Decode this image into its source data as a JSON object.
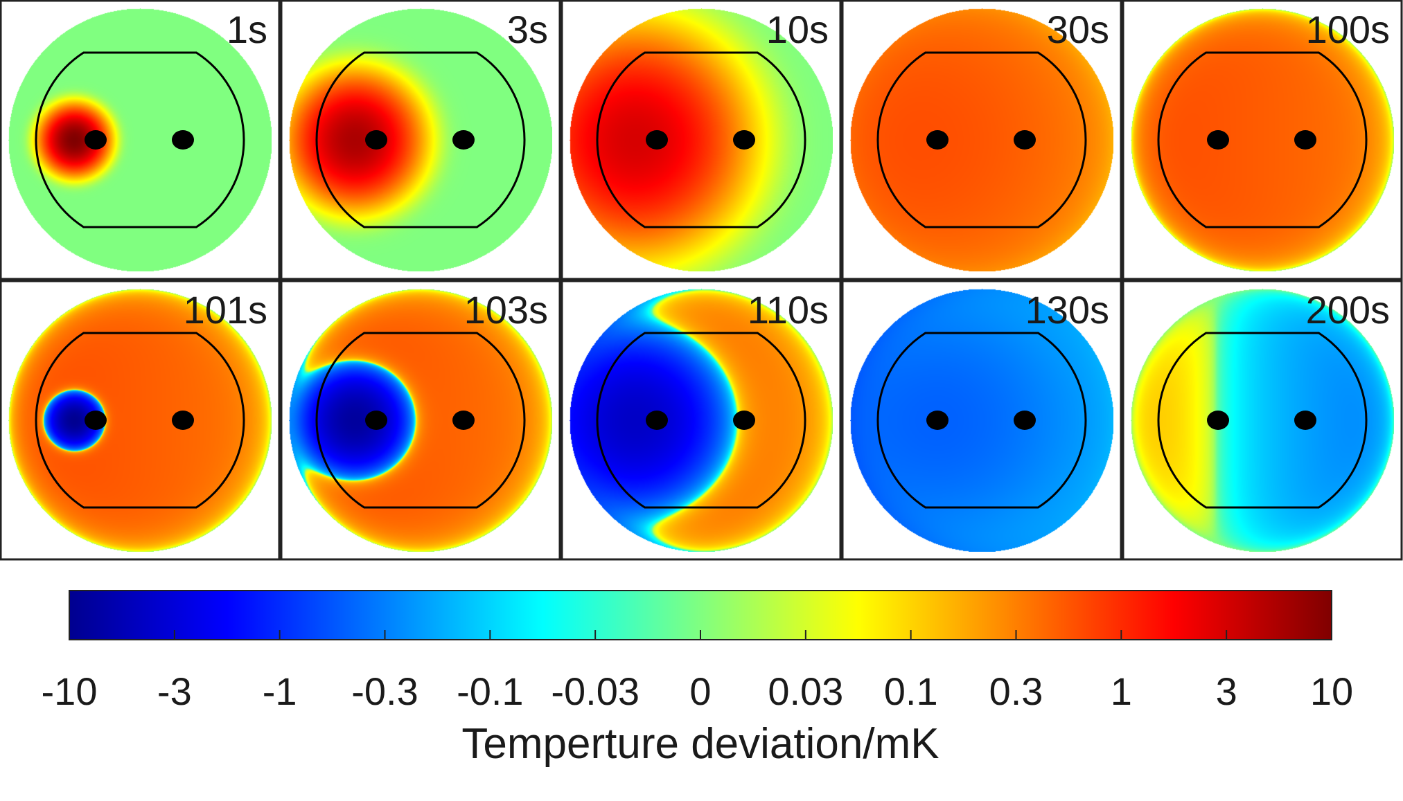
{
  "chart_data": {
    "type": "heatmap",
    "panels": [
      {
        "label": "1s",
        "hot": {
          "amp": 10,
          "sigma": 0.09
        },
        "cold": null,
        "background": 0,
        "gradient": 0
      },
      {
        "label": "3s",
        "hot": {
          "amp": 5,
          "sigma": 0.18
        },
        "cold": null,
        "background": 0,
        "gradient": 0
      },
      {
        "label": "10s",
        "hot": {
          "amp": 2.5,
          "sigma": 0.32
        },
        "cold": null,
        "background": 0,
        "gradient": 0
      },
      {
        "label": "30s",
        "hot": {
          "amp": 0.3,
          "sigma": 0.9
        },
        "cold": null,
        "background": 0.08,
        "gradient": 0
      },
      {
        "label": "100s",
        "hot": null,
        "cold": null,
        "background": 0.3,
        "gradient": 0.12
      },
      {
        "label": "101s",
        "hot": null,
        "cold": {
          "amp": 10,
          "sigma": 0.09
        },
        "background": 0.3,
        "gradient": 0.12
      },
      {
        "label": "103s",
        "hot": null,
        "cold": {
          "amp": 8,
          "sigma": 0.18
        },
        "background": 0.3,
        "gradient": 0.12
      },
      {
        "label": "110s",
        "hot": null,
        "cold": {
          "amp": 4,
          "sigma": 0.32
        },
        "background": 0.25,
        "gradient": 0.12
      },
      {
        "label": "130s",
        "hot": null,
        "cold": {
          "amp": 0.4,
          "sigma": 0.8
        },
        "background": 0.08,
        "gradient": 0.1
      },
      {
        "label": "200s",
        "hot": null,
        "cold": null,
        "background": -0.05,
        "gradient": 0.14
      }
    ],
    "colorbar": {
      "ticks": [
        "-10",
        "-3",
        "-1",
        "-0.3",
        "-0.1",
        "-0.03",
        "0",
        "0.03",
        "0.1",
        "0.3",
        "1",
        "3",
        "10"
      ],
      "label": "Temperture deviation/mK",
      "range": [
        -10,
        10
      ],
      "scale": "symmetric-log",
      "colormap": "jet"
    }
  }
}
